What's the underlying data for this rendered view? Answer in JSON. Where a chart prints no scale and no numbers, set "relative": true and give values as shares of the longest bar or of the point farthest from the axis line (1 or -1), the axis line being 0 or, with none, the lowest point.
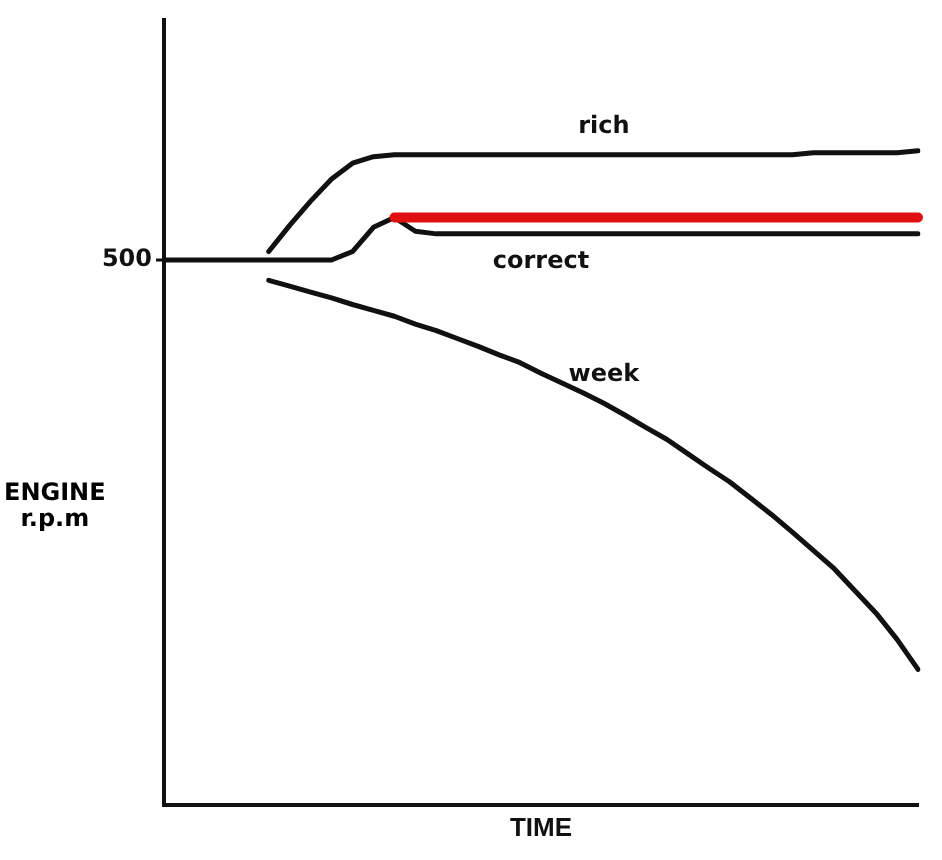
{
  "chart_data": {
    "type": "line",
    "relative": true,
    "xlabel": "TIME",
    "ylabel": "ENGINE\nr.p.m",
    "legend": false,
    "grid": false,
    "marker": "none",
    "categories": [
      null,
      null,
      null,
      null,
      null,
      null,
      null,
      null,
      null,
      null,
      null,
      null,
      null,
      null,
      null,
      null,
      null,
      null,
      null,
      null,
      null,
      null,
      null,
      null,
      null,
      null,
      null,
      null,
      null,
      null,
      null,
      null,
      null,
      null,
      null,
      null,
      null
    ],
    "annotations": [
      "500"
    ],
    "series": [
      {
        "name": "rich",
        "color": "#111111",
        "values": [
          null,
          null,
          null,
          null,
          null,
          0.846,
          0.886,
          0.923,
          0.957,
          0.981,
          0.991,
          0.994,
          0.994,
          0.994,
          0.994,
          0.994,
          0.994,
          0.994,
          0.994,
          0.994,
          0.994,
          0.994,
          0.994,
          0.994,
          0.994,
          0.994,
          0.994,
          0.994,
          0.994,
          0.994,
          0.994,
          0.997,
          0.997,
          0.997,
          0.997,
          0.997,
          1
        ]
      },
      {
        "color": "#e01010",
        "values": [
          null,
          null,
          null,
          null,
          null,
          null,
          null,
          null,
          null,
          null,
          null,
          0.898,
          0.898,
          0.898,
          0.898,
          0.898,
          0.898,
          0.898,
          0.898,
          0.898,
          0.898,
          0.898,
          0.898,
          0.898,
          0.898,
          0.898,
          0.898,
          0.898,
          0.898,
          0.898,
          0.898,
          0.898,
          0.898,
          0.898,
          0.898,
          0.898,
          0.898
        ]
      },
      {
        "name": "correct",
        "color": "#111111",
        "values": [
          0.833,
          0.833,
          0.833,
          0.833,
          0.833,
          0.833,
          0.833,
          0.833,
          0.833,
          0.846,
          0.883,
          0.898,
          0.877,
          0.873,
          0.873,
          0.873,
          0.873,
          0.873,
          0.873,
          0.873,
          0.873,
          0.873,
          0.873,
          0.873,
          0.873,
          0.873,
          0.873,
          0.873,
          0.873,
          0.873,
          0.873,
          0.873,
          0.873,
          0.873,
          0.873,
          0.873,
          0.873
        ]
      },
      {
        "name": "week",
        "color": "#111111",
        "values": [
          null,
          null,
          null,
          null,
          null,
          0.802,
          0.793,
          0.784,
          0.775,
          0.765,
          0.756,
          0.747,
          0.735,
          0.725,
          0.713,
          0.701,
          0.688,
          0.676,
          0.66,
          0.645,
          0.63,
          0.614,
          0.596,
          0.577,
          0.559,
          0.537,
          0.515,
          0.494,
          0.469,
          0.444,
          0.417,
          0.389,
          0.361,
          0.327,
          0.293,
          0.253,
          0.207
        ]
      }
    ]
  }
}
